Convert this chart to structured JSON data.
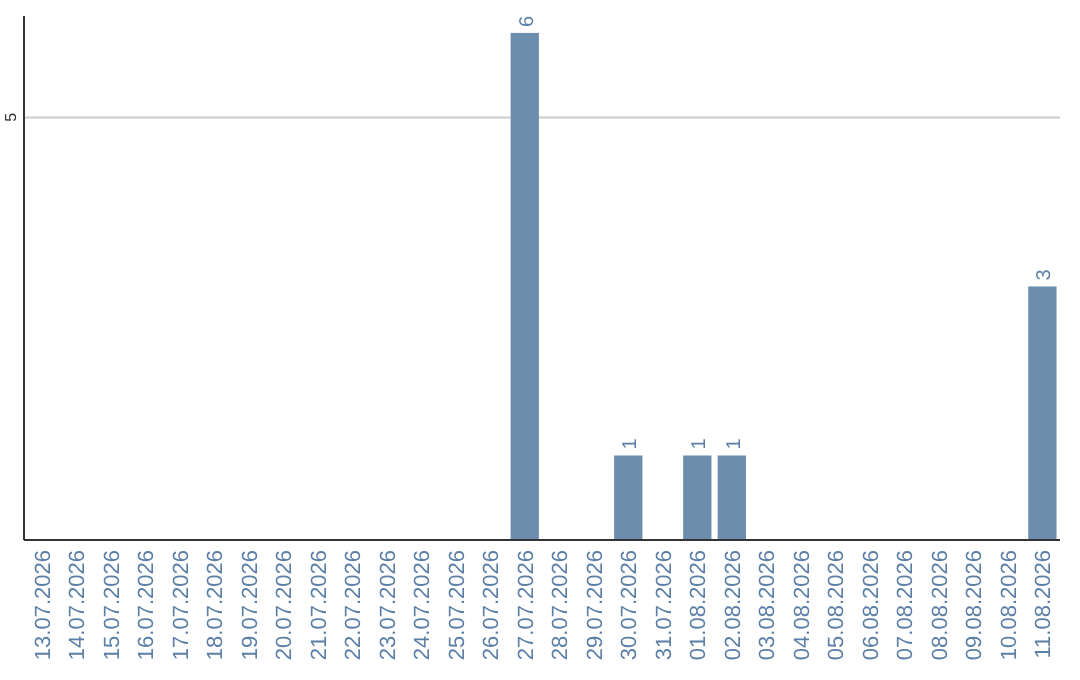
{
  "chart_data": {
    "type": "bar",
    "categories": [
      "13.07.2026",
      "14.07.2026",
      "15.07.2026",
      "16.07.2026",
      "17.07.2026",
      "18.07.2026",
      "19.07.2026",
      "20.07.2026",
      "21.07.2026",
      "22.07.2026",
      "23.07.2026",
      "24.07.2026",
      "25.07.2026",
      "26.07.2026",
      "27.07.2026",
      "28.07.2026",
      "29.07.2026",
      "30.07.2026",
      "31.07.2026",
      "01.08.2026",
      "02.08.2026",
      "03.08.2026",
      "04.08.2026",
      "05.08.2026",
      "06.08.2026",
      "07.08.2026",
      "08.08.2026",
      "09.08.2026",
      "10.08.2026",
      "11.08.2026"
    ],
    "values": [
      null,
      null,
      null,
      null,
      null,
      null,
      null,
      null,
      null,
      null,
      null,
      null,
      null,
      null,
      6,
      null,
      null,
      1,
      null,
      1,
      1,
      null,
      null,
      null,
      null,
      null,
      null,
      null,
      null,
      3
    ],
    "data_labels": true,
    "color": "#6d8dac",
    "ylim": [
      0,
      6.2
    ],
    "ref_lines": [
      {
        "axis": "y",
        "value": 5,
        "label": "5",
        "color": "#cccccc"
      }
    ]
  }
}
